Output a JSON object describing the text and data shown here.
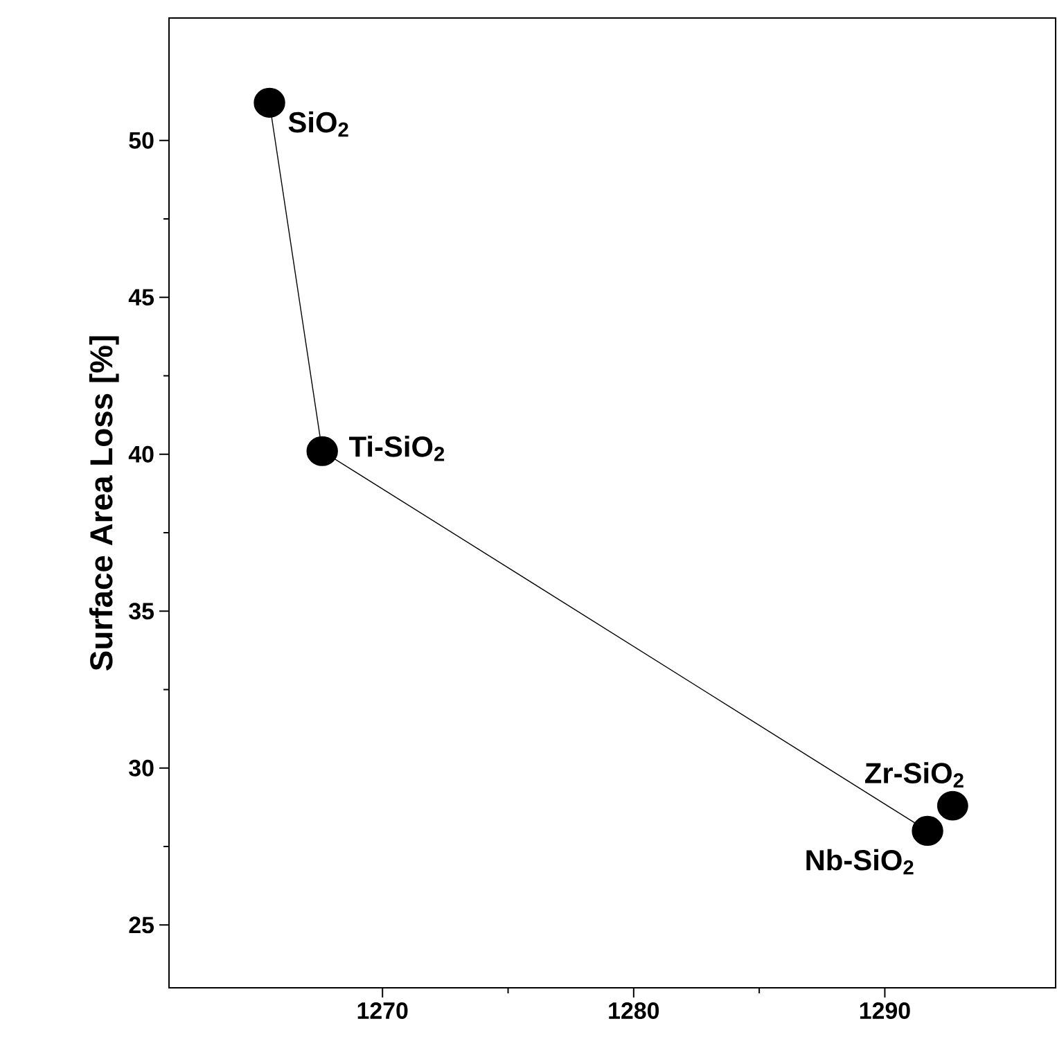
{
  "chart_data": {
    "type": "scatter",
    "ylabel": "Surface Area Loss [%]",
    "series": [
      {
        "type": "line",
        "color": "#000000",
        "marker": "circle",
        "x": [
          1265.5,
          1267.6,
          1291.7
        ],
        "values": [
          51.2,
          40.1,
          28.0
        ]
      },
      {
        "color": "#000000",
        "marker": "circle",
        "x": [
          1292.7
        ],
        "values": [
          28.8
        ]
      }
    ],
    "annotations": [
      {
        "text": "SiO$_{2}$",
        "x": 1265.5,
        "y": 51.2
      },
      {
        "text": "Ti-SiO$_{2}$",
        "x": 1267.6,
        "y": 40.1
      },
      {
        "text": "Zr-SiO$_{2}$",
        "x": 1292.7,
        "y": 28.8
      },
      {
        "text": "Nb-SiO$_{2}$",
        "x": 1291.7,
        "y": 28.0
      }
    ],
    "xlim": [
      1261.5,
      1296.8
    ],
    "ylim": [
      23.0,
      53.9
    ],
    "xticks": [
      1270,
      1280,
      1290
    ],
    "yticks": [
      25,
      30,
      35,
      40,
      45,
      50
    ],
    "grid": false
  }
}
